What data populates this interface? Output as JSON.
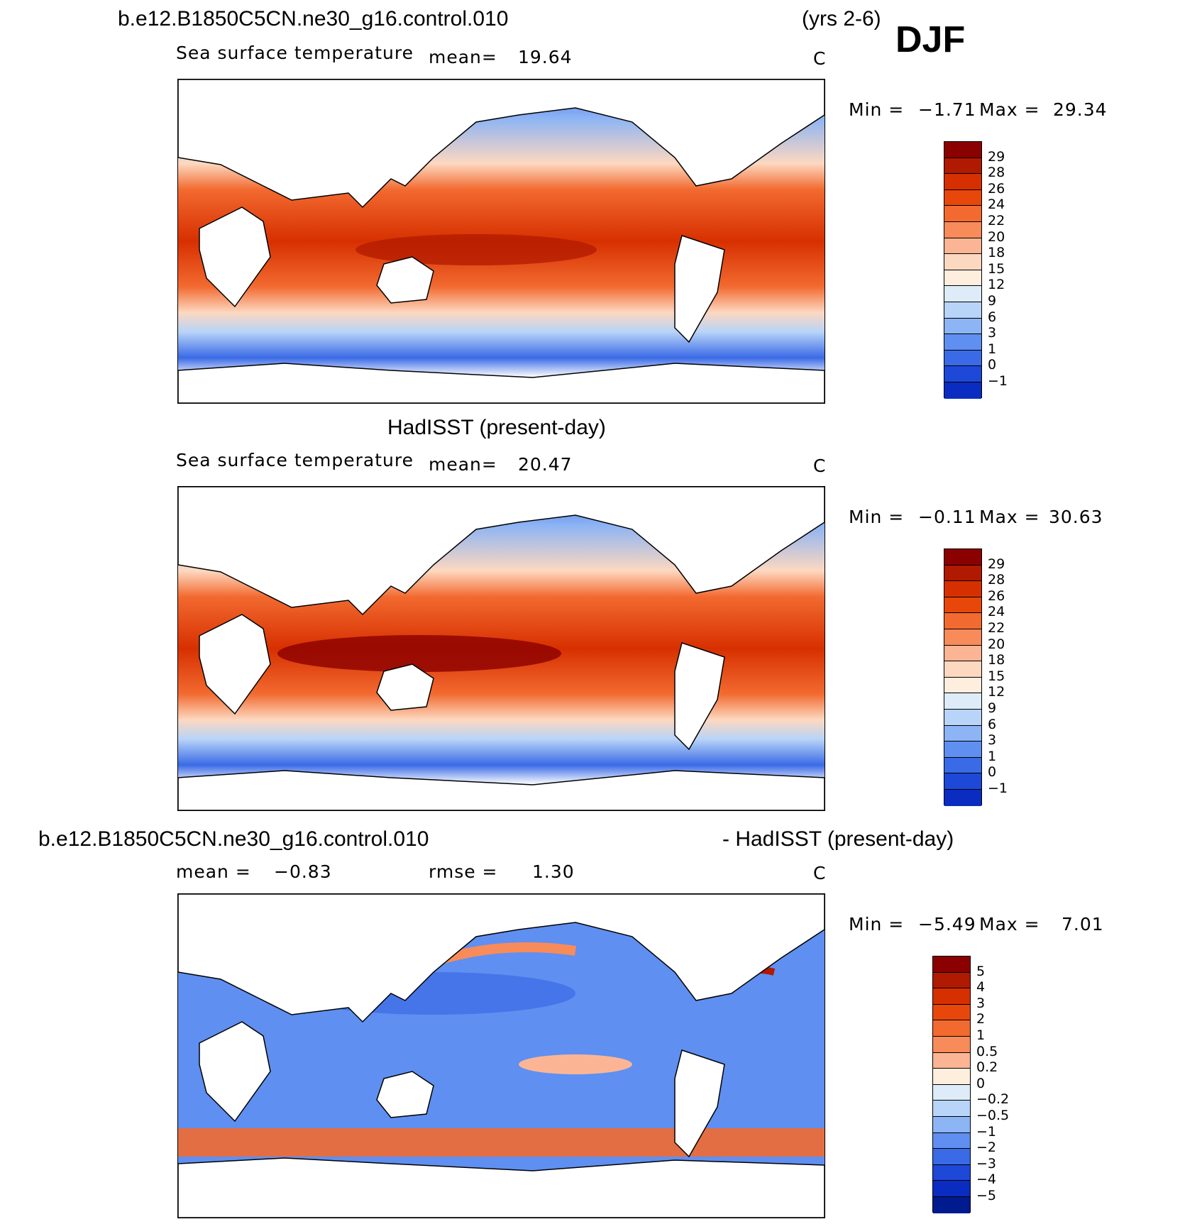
{
  "header": {
    "case_name": "b.e12.B1850C5CN.ne30_g16.control.010",
    "years": "(yrs 2-6)",
    "season": "DJF"
  },
  "panels": [
    {
      "variable": "Sea surface temperature",
      "mean_label": "mean=",
      "mean_value": "19.64",
      "units": "C",
      "min_label": "Min =",
      "min_value": "−1.71",
      "max_label": "Max =",
      "max_value": "29.34"
    },
    {
      "title": "HadISST (present-day)",
      "variable": "Sea surface temperature",
      "mean_label": "mean=",
      "mean_value": "20.47",
      "units": "C",
      "min_label": "Min =",
      "min_value": "−0.11",
      "max_label": "Max =",
      "max_value": "30.63"
    },
    {
      "title_left": "b.e12.B1850C5CN.ne30_g16.control.010",
      "title_right": "- HadISST (present-day)",
      "mean_label": "mean =",
      "mean_value": "−0.83",
      "rmse_label": "rmse =",
      "rmse_value": "1.30",
      "units": "C",
      "min_label": "Min =",
      "min_value": "−5.49",
      "max_label": "Max =",
      "max_value": "7.01"
    }
  ],
  "colorbars": {
    "sst": {
      "labels": [
        "29",
        "28",
        "26",
        "24",
        "22",
        "20",
        "18",
        "15",
        "12",
        "9",
        "6",
        "3",
        "1",
        "0",
        "−1"
      ],
      "colors": [
        "#8b0000",
        "#b01a00",
        "#d73000",
        "#e8470c",
        "#f26a30",
        "#f88b5a",
        "#fcb594",
        "#fdd8c0",
        "#fdeede",
        "#deecf9",
        "#b8d4f8",
        "#8db4f4",
        "#5f8ff0",
        "#3a6ae6",
        "#1d48d8",
        "#0a2cc0",
        "#001a90"
      ]
    },
    "diff": {
      "labels": [
        "5",
        "4",
        "3",
        "2",
        "1",
        "0.5",
        "0.2",
        "0",
        "−0.2",
        "−0.5",
        "−1",
        "−2",
        "−3",
        "−4",
        "−5"
      ],
      "colors": [
        "#8b0000",
        "#b01a00",
        "#d73000",
        "#e8470c",
        "#f26a30",
        "#f88b5a",
        "#fcb594",
        "#fdeede",
        "#deecf9",
        "#b8d4f8",
        "#8db4f4",
        "#5f8ff0",
        "#3a6ae6",
        "#1d48d8",
        "#0a2cc0",
        "#001a90"
      ]
    }
  }
}
